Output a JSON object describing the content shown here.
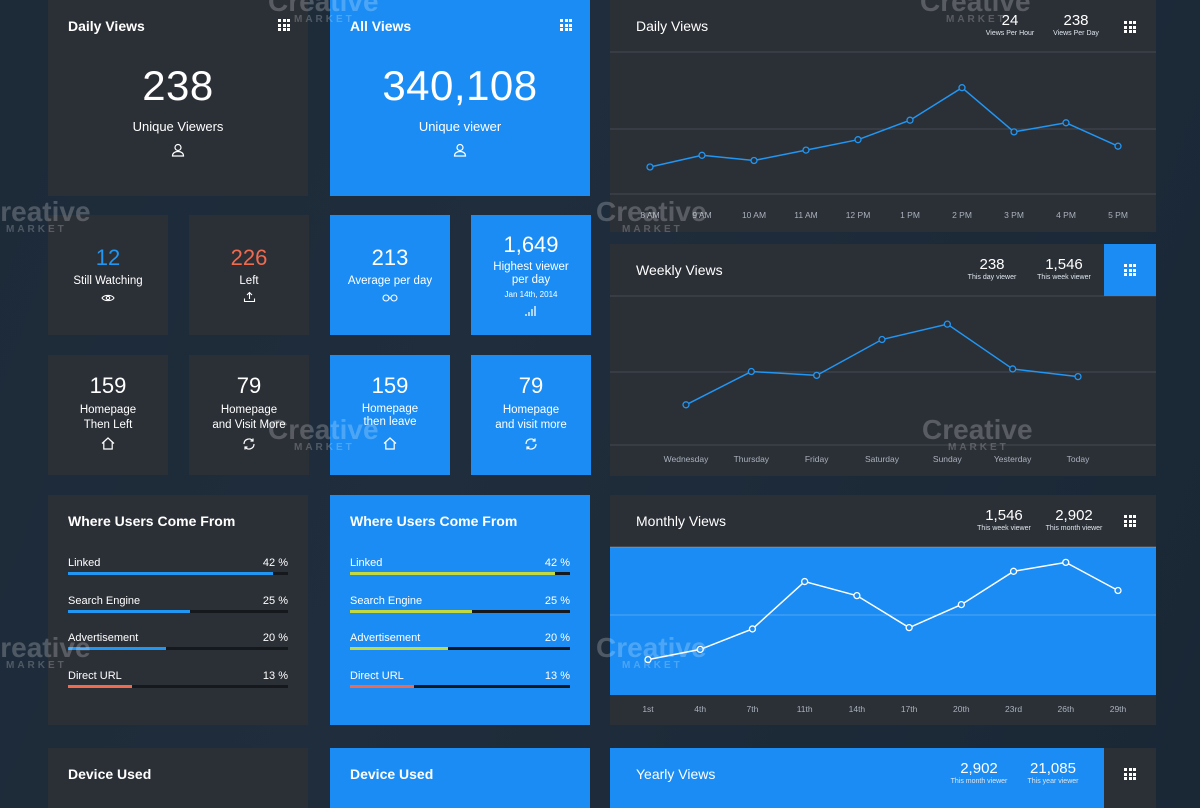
{
  "daily_views_card": {
    "title": "Daily Views",
    "value": "238",
    "label": "Unique Viewers"
  },
  "all_views_card": {
    "title": "All Views",
    "value": "340,108",
    "label": "Unique viewer"
  },
  "dark_small": [
    {
      "value": "12",
      "label": "Still Watching",
      "icon": "eye-icon",
      "color": "#2196f3"
    },
    {
      "value": "226",
      "label": "Left",
      "icon": "exit-icon",
      "color": "#ef6a4f"
    },
    {
      "value": "159",
      "label": "Homepage\nThen Left",
      "icon": "home-icon",
      "color": "#ffffff"
    },
    {
      "value": "79",
      "label": "Homepage\nand Visit More",
      "icon": "refresh-icon",
      "color": "#ffffff"
    }
  ],
  "blue_small": [
    {
      "value": "213",
      "label": "Average per day",
      "icon": "glasses-icon"
    },
    {
      "value": "1,649",
      "label": "Highest viewer\nper day",
      "date": "Jan 14th, 2014",
      "icon": "signal-icon"
    },
    {
      "value": "159",
      "label": "Homepage\nthen leave",
      "icon": "home-icon"
    },
    {
      "value": "79",
      "label": "Homepage\nand visit more",
      "icon": "refresh-icon"
    }
  ],
  "sources_dark": {
    "title": "Where Users Come From",
    "items": [
      {
        "label": "Linked",
        "pct": "42 %",
        "value": 42
      },
      {
        "label": "Search Engine",
        "pct": "25 %",
        "value": 25
      },
      {
        "label": "Advertisement",
        "pct": "20 %",
        "value": 20
      },
      {
        "label": "Direct URL",
        "pct": "13 %",
        "value": 13
      }
    ],
    "colors": [
      "#2196f3",
      "#2196f3",
      "#2196f3",
      "#ef6a4f"
    ]
  },
  "sources_blue": {
    "title": "Where Users Come From",
    "items": [
      {
        "label": "Linked",
        "pct": "42 %",
        "value": 42
      },
      {
        "label": "Search Engine",
        "pct": "25 %",
        "value": 25
      },
      {
        "label": "Advertisement",
        "pct": "20 %",
        "value": 20
      },
      {
        "label": "Direct URL",
        "pct": "13 %",
        "value": 13
      }
    ],
    "colors": [
      "#c3d941",
      "#c3d941",
      "#c3d941",
      "#ef6a4f"
    ]
  },
  "device_dark": {
    "title": "Device Used"
  },
  "device_blue": {
    "title": "Device Used"
  },
  "daily_chart": {
    "title": "Daily Views",
    "stats": [
      {
        "value": "24",
        "label": "Views Per Hour"
      },
      {
        "value": "238",
        "label": "Views Per Day"
      }
    ]
  },
  "weekly_chart": {
    "title": "Weekly Views",
    "stats": [
      {
        "value": "238",
        "label": "This day viewer"
      },
      {
        "value": "1,546",
        "label": "This week viewer"
      }
    ]
  },
  "monthly_chart": {
    "title": "Monthly Views",
    "stats": [
      {
        "value": "1,546",
        "label": "This week viewer"
      },
      {
        "value": "2,902",
        "label": "This month viewer"
      }
    ]
  },
  "yearly_chart": {
    "title": "Yearly Views",
    "stats": [
      {
        "value": "2,902",
        "label": "This month viewer"
      },
      {
        "value": "21,085",
        "label": "This year viewer"
      }
    ]
  },
  "watermark": {
    "brand": "Creative",
    "sub": "MARKET"
  },
  "chart_data": [
    {
      "type": "line",
      "title": "Daily Views",
      "categories": [
        "8 AM",
        "9 AM",
        "10 AM",
        "11 AM",
        "12 PM",
        "1 PM",
        "2 PM",
        "3 PM",
        "4 PM",
        "5 PM"
      ],
      "values": [
        10,
        19,
        15,
        23,
        31,
        46,
        71,
        37,
        44,
        26
      ],
      "ylim": [
        0,
        100
      ],
      "grid": true,
      "color": "#2196f3"
    },
    {
      "type": "line",
      "title": "Weekly Views",
      "categories": [
        "Wednesday",
        "Thursday",
        "Friday",
        "Saturday",
        "Sunday",
        "Yesterday",
        "Today"
      ],
      "values": [
        15,
        41,
        38,
        66,
        78,
        43,
        37
      ],
      "ylim": [
        0,
        100
      ],
      "grid": true,
      "color": "#2196f3"
    },
    {
      "type": "line",
      "title": "Monthly Views",
      "categories": [
        "1st",
        "4th",
        "7th",
        "11th",
        "14th",
        "17th",
        "20th",
        "23rd",
        "26th",
        "29th"
      ],
      "values": [
        12,
        20,
        36,
        73,
        62,
        37,
        55,
        81,
        88,
        66
      ],
      "ylim": [
        0,
        100
      ],
      "grid": true,
      "color": "#ffffff"
    }
  ]
}
